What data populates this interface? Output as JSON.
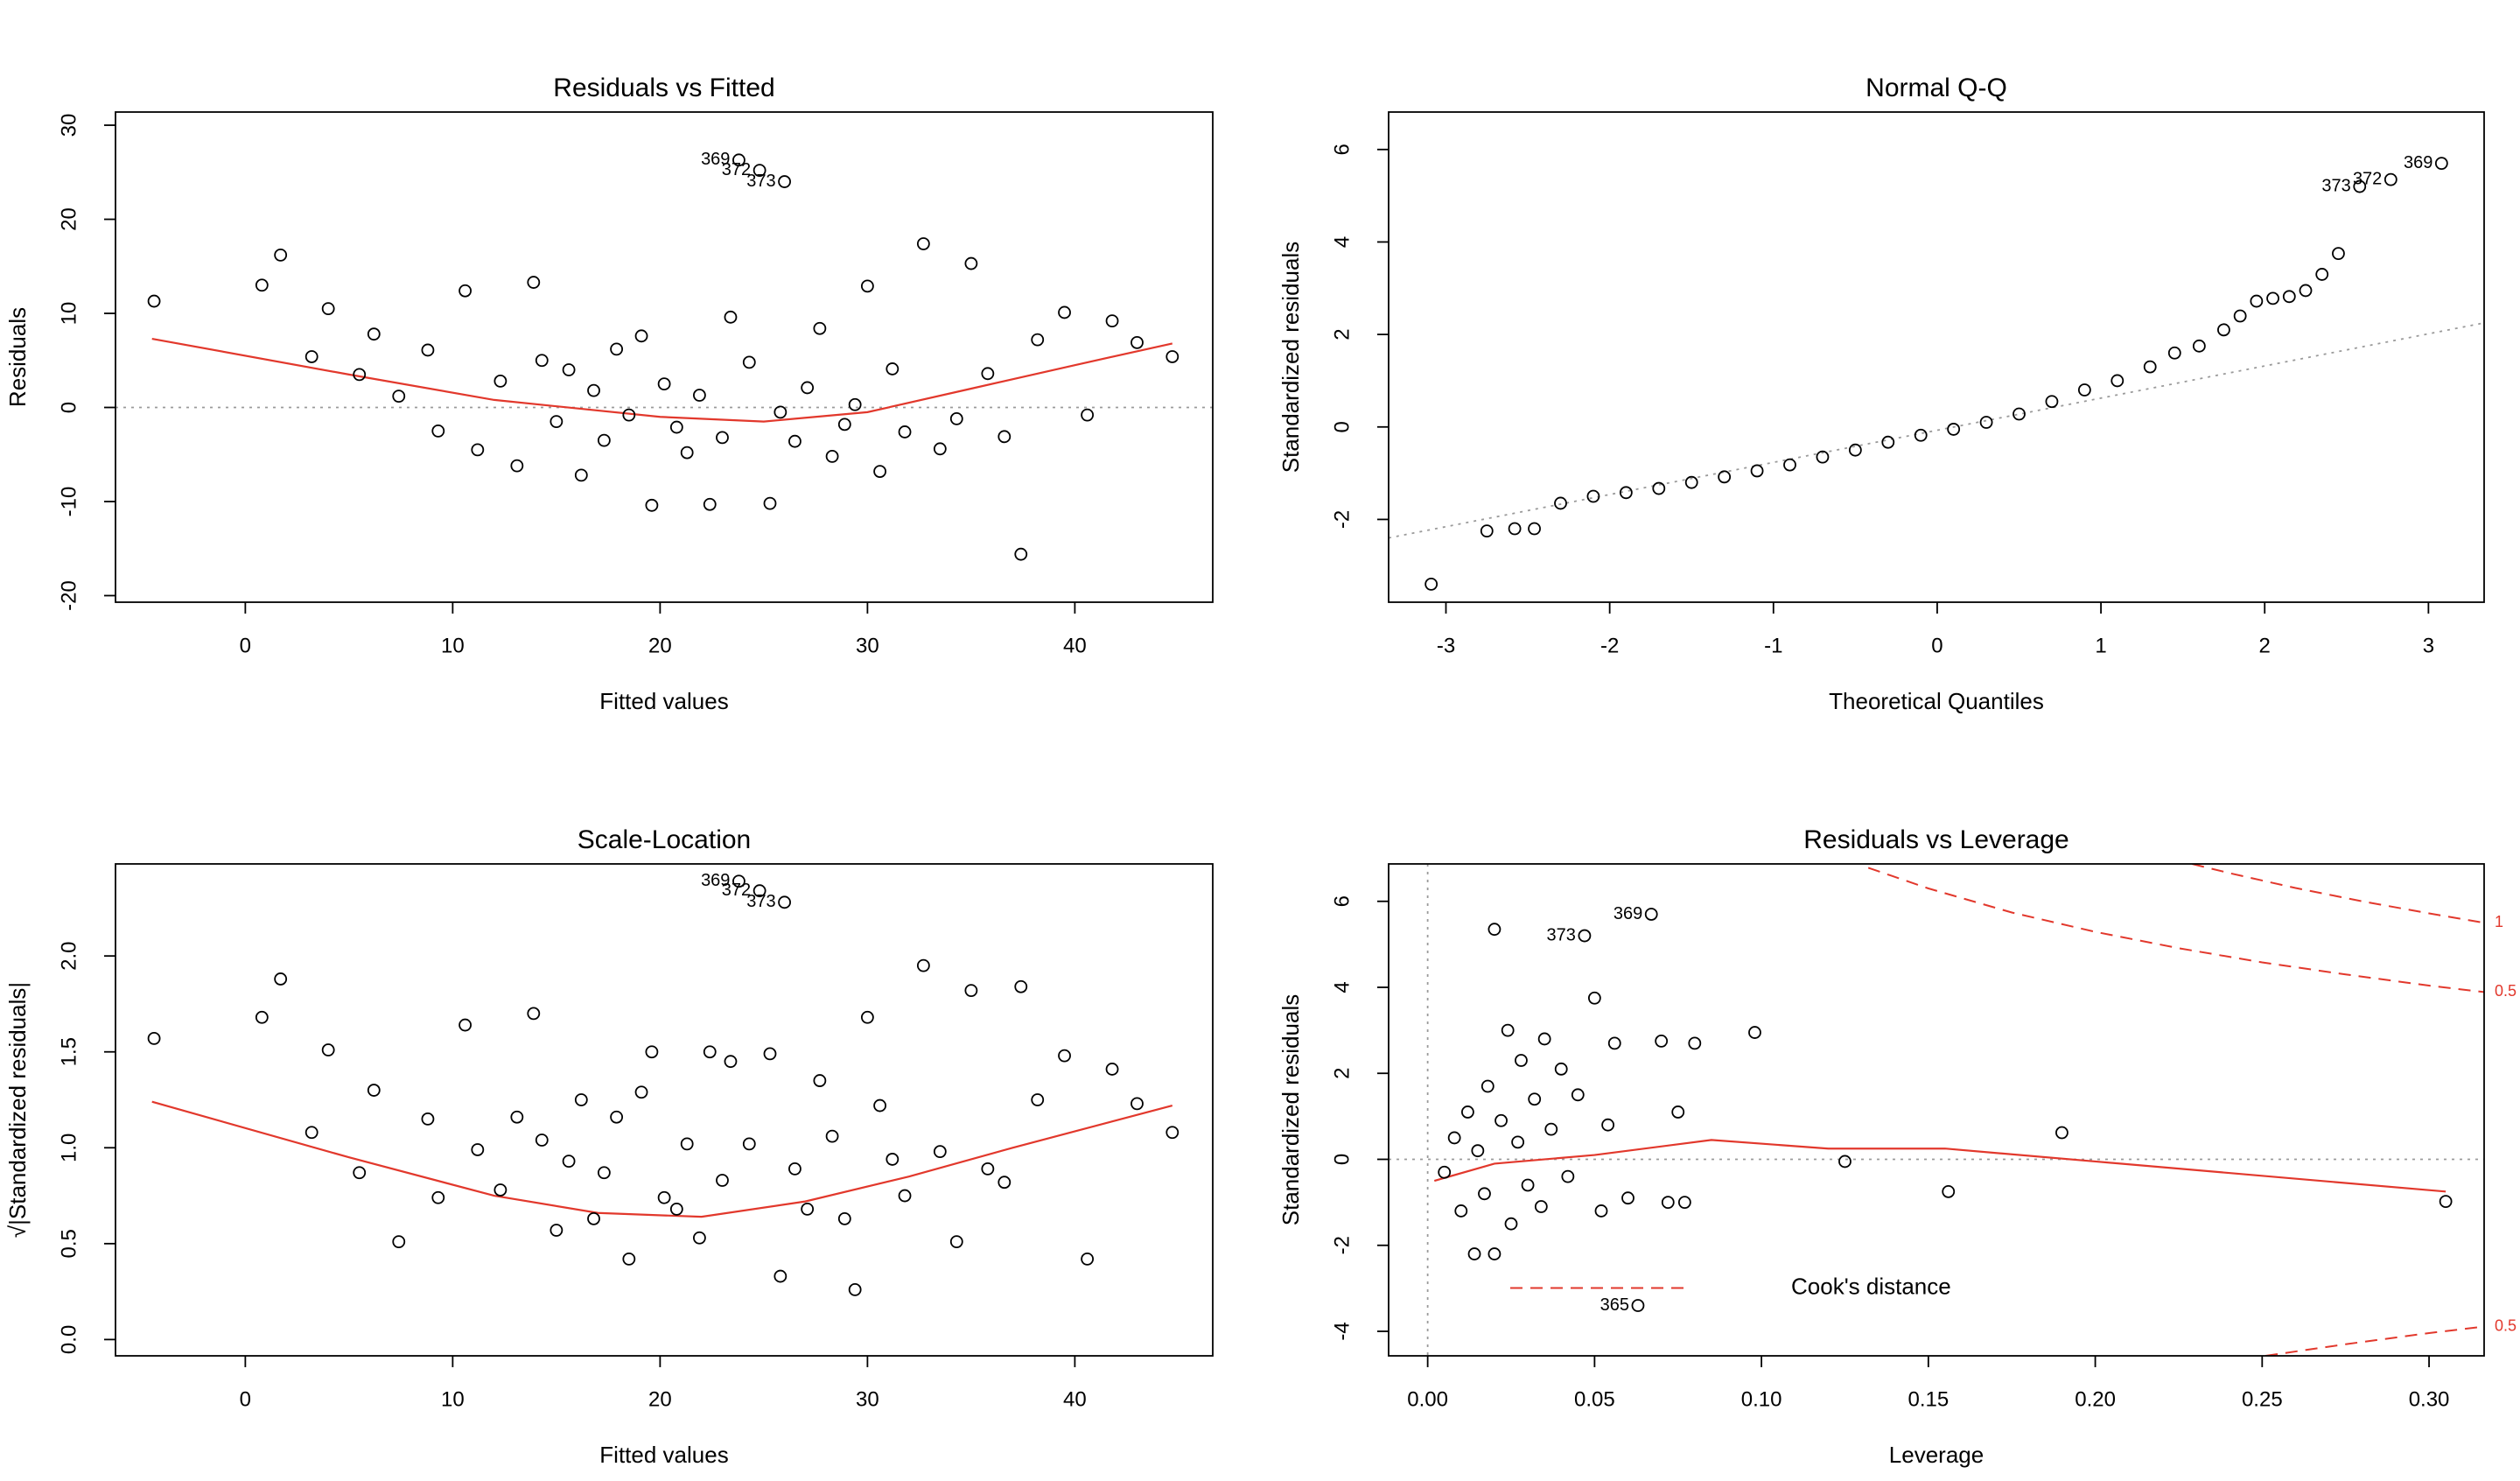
{
  "chart_data": [
    {
      "type": "scatter",
      "title": "Residuals vs Fitted",
      "xlabel": "Fitted values",
      "ylabel": "Residuals",
      "xlim": [
        -6.26,
        46.65
      ],
      "ylim": [
        -20.7,
        31.4
      ],
      "xticks": [
        0,
        10,
        20,
        30,
        40
      ],
      "yticks": [
        -20,
        -10,
        0,
        10,
        20,
        30
      ],
      "hline": 0,
      "point_color": "#000000",
      "x": [
        -4.4,
        0.8,
        1.7,
        3.2,
        4,
        5.5,
        6.2,
        7.4,
        8.8,
        9.3,
        10.6,
        11.2,
        12.3,
        13.1,
        13.9,
        14.3,
        15,
        15.6,
        16.2,
        16.8,
        17.3,
        17.9,
        18.5,
        19.1,
        19.6,
        20.2,
        20.8,
        21.3,
        21.9,
        22.4,
        23,
        23.4,
        23.8,
        24.3,
        24.8,
        25.3,
        25.8,
        26,
        26.5,
        27.1,
        27.7,
        28.3,
        28.9,
        29.4,
        30,
        30.6,
        31.2,
        31.8,
        32.7,
        33.5,
        34.3,
        35,
        35.8,
        36.6,
        37.4,
        38.2,
        39.5,
        40.6,
        41.8,
        43,
        44.7
      ],
      "y": [
        11.3,
        13,
        16.2,
        5.4,
        10.5,
        3.5,
        7.8,
        1.2,
        6.1,
        -2.5,
        12.4,
        -4.5,
        2.8,
        -6.2,
        13.3,
        5,
        -1.5,
        4,
        -7.2,
        1.8,
        -3.5,
        6.2,
        -0.8,
        7.6,
        -10.4,
        2.5,
        -2.1,
        -4.8,
        1.3,
        -10.3,
        -3.2,
        9.6,
        26.3,
        4.8,
        25.2,
        -10.2,
        -0.5,
        24,
        -3.6,
        2.1,
        8.4,
        -5.2,
        -1.8,
        0.3,
        12.9,
        -6.8,
        4.1,
        -2.6,
        17.4,
        -4.4,
        -1.2,
        15.3,
        3.6,
        -3.1,
        -15.6,
        7.2,
        10.1,
        -0.8,
        9.2,
        6.9,
        5.4
      ],
      "smooth": {
        "color": "#e2382c",
        "x": [
          -4.5,
          5,
          12,
          20,
          25,
          30,
          35,
          40,
          44.7
        ],
        "y": [
          7.3,
          3.5,
          0.8,
          -1,
          -1.5,
          -0.5,
          2,
          4.5,
          6.8
        ]
      },
      "annotations": [
        {
          "text": "369",
          "x": 23.8,
          "y": 26.3
        },
        {
          "text": "372",
          "x": 24.8,
          "y": 25.2
        },
        {
          "text": "373",
          "x": 26,
          "y": 24
        }
      ]
    },
    {
      "type": "scatter",
      "title": "Normal Q-Q",
      "xlabel": "Theoretical Quantiles",
      "ylabel": "Standardized residuals",
      "xlim": [
        -3.35,
        3.34
      ],
      "ylim": [
        -3.79,
        6.81
      ],
      "xticks": [
        -3,
        -2,
        -1,
        0,
        1,
        2,
        3
      ],
      "yticks": [
        -2,
        0,
        2,
        4,
        6
      ],
      "point_color": "#000000",
      "x": [
        -3.09,
        -2.75,
        -2.58,
        -2.46,
        -2.3,
        -2.1,
        -1.9,
        -1.7,
        -1.5,
        -1.3,
        -1.1,
        -0.9,
        -0.7,
        -0.5,
        -0.3,
        -0.1,
        0.1,
        0.3,
        0.5,
        0.7,
        0.9,
        1.1,
        1.3,
        1.45,
        1.6,
        1.75,
        1.85,
        1.95,
        2.05,
        2.15,
        2.25,
        2.35,
        2.45,
        2.58,
        2.77,
        3.08
      ],
      "y": [
        -3.4,
        -2.25,
        -2.2,
        -2.2,
        -1.65,
        -1.5,
        -1.42,
        -1.33,
        -1.2,
        -1.08,
        -0.95,
        -0.82,
        -0.65,
        -0.5,
        -0.33,
        -0.18,
        -0.05,
        0.1,
        0.28,
        0.55,
        0.8,
        1.0,
        1.3,
        1.6,
        1.75,
        2.1,
        2.4,
        2.72,
        2.78,
        2.82,
        2.95,
        3.3,
        3.75,
        5.2,
        5.35,
        5.7
      ],
      "ref_line": {
        "x": [
          -3.35,
          3.34
        ],
        "y": [
          -2.4,
          2.25
        ]
      },
      "annotations": [
        {
          "text": "369",
          "x": 3.08,
          "y": 5.7
        },
        {
          "text": "372",
          "x": 2.77,
          "y": 5.35
        },
        {
          "text": "373",
          "x": 2.58,
          "y": 5.2
        }
      ]
    },
    {
      "type": "scatter",
      "title": "Scale-Location",
      "xlabel": "Fitted values",
      "ylabel": "√|Standardized residuals|",
      "xlim": [
        -6.26,
        46.65
      ],
      "ylim": [
        -0.085,
        2.48
      ],
      "xticks": [
        0,
        10,
        20,
        30,
        40
      ],
      "yticks": [
        {
          "value": 0,
          "label": "0.0"
        },
        0.5,
        {
          "value": 1,
          "label": "1.0"
        },
        1.5,
        {
          "value": 2,
          "label": "2.0"
        }
      ],
      "point_color": "#000000",
      "x": [
        -4.4,
        0.8,
        1.7,
        3.2,
        4,
        5.5,
        6.2,
        7.4,
        8.8,
        9.3,
        10.6,
        11.2,
        12.3,
        13.1,
        13.9,
        14.3,
        15,
        15.6,
        16.2,
        16.8,
        17.3,
        17.9,
        18.5,
        19.1,
        19.6,
        20.2,
        20.8,
        21.3,
        21.9,
        22.4,
        23,
        23.4,
        23.8,
        24.3,
        24.8,
        25.3,
        25.8,
        26,
        26.5,
        27.1,
        27.7,
        28.3,
        28.9,
        29.4,
        30,
        30.6,
        31.2,
        31.8,
        32.7,
        33.5,
        34.3,
        35,
        35.8,
        36.6,
        37.4,
        38.2,
        39.5,
        40.6,
        41.8,
        43,
        44.7
      ],
      "y": [
        1.57,
        1.68,
        1.88,
        1.08,
        1.51,
        0.87,
        1.3,
        0.51,
        1.15,
        0.74,
        1.64,
        0.99,
        0.78,
        1.16,
        1.7,
        1.04,
        0.57,
        0.93,
        1.25,
        0.63,
        0.87,
        1.16,
        0.42,
        1.29,
        1.5,
        0.74,
        0.68,
        1.02,
        0.53,
        1.5,
        0.83,
        1.45,
        2.39,
        1.02,
        2.34,
        1.49,
        0.33,
        2.28,
        0.89,
        0.68,
        1.35,
        1.06,
        0.63,
        0.26,
        1.68,
        1.22,
        0.94,
        0.75,
        1.95,
        0.98,
        0.51,
        1.82,
        0.89,
        0.82,
        1.84,
        1.25,
        1.48,
        0.42,
        1.41,
        1.23,
        1.08
      ],
      "smooth": {
        "color": "#e2382c",
        "x": [
          -4.5,
          5,
          12,
          17,
          22,
          27,
          32,
          37,
          44.7
        ],
        "y": [
          1.24,
          0.95,
          0.75,
          0.66,
          0.64,
          0.72,
          0.85,
          1.0,
          1.22
        ]
      },
      "annotations": [
        {
          "text": "369",
          "x": 23.8,
          "y": 2.39
        },
        {
          "text": "372",
          "x": 24.8,
          "y": 2.34
        },
        {
          "text": "373",
          "x": 26,
          "y": 2.28
        }
      ]
    },
    {
      "type": "scatter",
      "title": "Residuals vs Leverage",
      "xlabel": "Leverage",
      "ylabel": "Standardized residuals",
      "xlim": [
        -0.0117,
        0.3165
      ],
      "ylim": [
        -4.57,
        6.87
      ],
      "xticks": [
        {
          "value": 0,
          "label": "0.00"
        },
        0.05,
        {
          "value": 0.1,
          "label": "0.10"
        },
        0.15,
        {
          "value": 0.2,
          "label": "0.20"
        },
        0.25,
        {
          "value": 0.3,
          "label": "0.30"
        }
      ],
      "yticks": [
        -4,
        -2,
        0,
        2,
        4,
        6
      ],
      "hline": 0,
      "vline": 0,
      "point_color": "#000000",
      "x": [
        0.005,
        0.008,
        0.01,
        0.012,
        0.014,
        0.015,
        0.017,
        0.018,
        0.02,
        0.02,
        0.022,
        0.024,
        0.025,
        0.027,
        0.028,
        0.03,
        0.032,
        0.034,
        0.035,
        0.037,
        0.04,
        0.042,
        0.045,
        0.047,
        0.05,
        0.052,
        0.054,
        0.056,
        0.06,
        0.063,
        0.067,
        0.07,
        0.072,
        0.075,
        0.077,
        0.08,
        0.098,
        0.125,
        0.156,
        0.19,
        0.305
      ],
      "y": [
        -0.3,
        0.5,
        -1.2,
        1.1,
        -2.2,
        0.2,
        -0.8,
        1.7,
        5.35,
        -2.2,
        0.9,
        3.0,
        -1.5,
        0.4,
        2.3,
        -0.6,
        1.4,
        -1.1,
        2.8,
        0.7,
        2.1,
        -0.4,
        1.5,
        5.2,
        3.75,
        -1.2,
        0.8,
        2.7,
        -0.9,
        -3.4,
        5.7,
        2.75,
        -1.0,
        1.1,
        -1.0,
        2.7,
        2.95,
        -0.05,
        -0.75,
        0.62,
        -0.98
      ],
      "smooth": {
        "color": "#e2382c",
        "x": [
          0.002,
          0.02,
          0.05,
          0.085,
          0.12,
          0.155,
          0.2,
          0.305
        ],
        "y": [
          -0.5,
          -0.1,
          0.1,
          0.45,
          0.25,
          0.25,
          -0.05,
          -0.75
        ]
      },
      "cooks_curves": [
        {
          "label": "1",
          "x": [
            0.229,
            0.24,
            0.26,
            0.28,
            0.3,
            0.3165
          ],
          "y": [
            6.87,
            6.66,
            6.31,
            6.0,
            5.72,
            5.5
          ]
        },
        {
          "label": "0.5",
          "x": [
            0.132,
            0.15,
            0.175,
            0.2,
            0.225,
            0.25,
            0.275,
            0.3,
            0.3165
          ],
          "y": [
            6.78,
            6.3,
            5.74,
            5.29,
            4.91,
            4.58,
            4.3,
            4.04,
            3.89
          ]
        },
        {
          "label": "0.5",
          "x": [
            0.251,
            0.275,
            0.3,
            0.3165
          ],
          "y": [
            -4.57,
            -4.3,
            -4.04,
            -3.89
          ]
        }
      ],
      "legend": "Cook's distance",
      "annotations": [
        {
          "text": "369",
          "x": 0.067,
          "y": 5.7
        },
        {
          "text": "373",
          "x": 0.047,
          "y": 5.2
        },
        {
          "text": "365",
          "x": 0.063,
          "y": -3.4
        }
      ]
    }
  ]
}
